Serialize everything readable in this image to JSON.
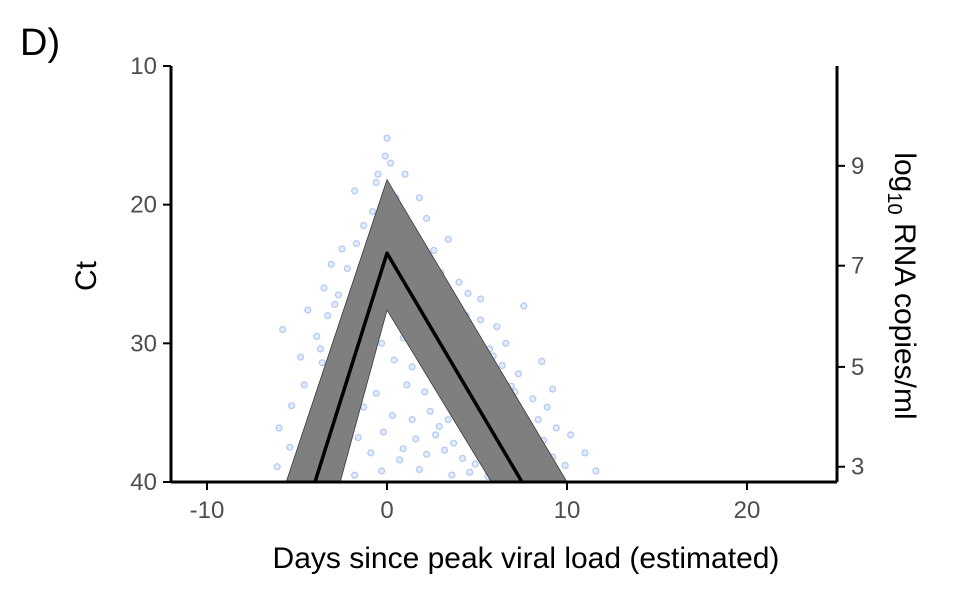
{
  "panel_label": "D)",
  "colors": {
    "points": "#4f86e8",
    "band": "#7f7f7f",
    "line": "#000000",
    "axis": "#000000"
  },
  "chart_data": {
    "type": "line",
    "title": "",
    "xlabel": "Days since peak viral load (estimated)",
    "ylabel": "Ct",
    "y2label": {
      "base": "log",
      "subscript": "10",
      "rest": " RNA copies/ml"
    },
    "xlim": [
      -12,
      25
    ],
    "ylim": [
      10,
      40
    ],
    "y_reversed": true,
    "x_ticks": [
      -10,
      0,
      10,
      20
    ],
    "x_tick_labels": [
      "-10",
      "0",
      "10",
      "20"
    ],
    "y_ticks": [
      10,
      20,
      30,
      40
    ],
    "y_tick_labels": [
      "10",
      "20",
      "30",
      "40"
    ],
    "y2_ticks_ct": [
      17.2,
      24.4,
      31.7,
      38.9
    ],
    "y2_tick_labels": [
      "9",
      "7",
      "5",
      "3"
    ],
    "grid": false,
    "series": [
      {
        "x": [
          -4,
          0,
          7.5
        ],
        "y": [
          40,
          23.5,
          40
        ]
      }
    ],
    "band": {
      "upper": {
        "x": [
          -5.6,
          0,
          10
        ],
        "y": [
          40,
          18.2,
          40
        ]
      },
      "lower": {
        "x": [
          -2.6,
          0,
          5.8
        ],
        "y": [
          40,
          27.6,
          40
        ]
      }
    },
    "scatter_note": "individual Ct observations (semi-transparent)",
    "scatter": [
      [
        0,
        15.2
      ],
      [
        -0.1,
        16.5
      ],
      [
        0.2,
        17
      ],
      [
        -0.5,
        17.8
      ],
      [
        1,
        17.8
      ],
      [
        -1.8,
        19
      ],
      [
        0.5,
        19.5
      ],
      [
        -0.8,
        20.5
      ],
      [
        1.8,
        19.5
      ],
      [
        -1.3,
        21.5
      ],
      [
        -0.3,
        21
      ],
      [
        0.9,
        21.2
      ],
      [
        2.2,
        21
      ],
      [
        -2.5,
        23.2
      ],
      [
        -1.7,
        22.8
      ],
      [
        -0.9,
        23.5
      ],
      [
        0.4,
        22.8
      ],
      [
        1.5,
        23
      ],
      [
        2.6,
        23.3
      ],
      [
        3.4,
        22.5
      ],
      [
        -3.1,
        24.3
      ],
      [
        -2.2,
        24.6
      ],
      [
        -1,
        25
      ],
      [
        0.2,
        25.3
      ],
      [
        1.2,
        24.7
      ],
      [
        2,
        25.4
      ],
      [
        3,
        24.9
      ],
      [
        4,
        25.6
      ],
      [
        -3.5,
        26
      ],
      [
        -2.7,
        26.5
      ],
      [
        -1.5,
        26.3
      ],
      [
        -0.6,
        26.9
      ],
      [
        0.8,
        26.1
      ],
      [
        1.8,
        26.7
      ],
      [
        2.7,
        26.4
      ],
      [
        3.6,
        26.9
      ],
      [
        4.5,
        26.4
      ],
      [
        5.2,
        26.8
      ],
      [
        -4.4,
        27.6
      ],
      [
        -3.3,
        28
      ],
      [
        -2,
        27.8
      ],
      [
        -0.8,
        28.2
      ],
      [
        0.6,
        28.5
      ],
      [
        1.6,
        28.1
      ],
      [
        2.5,
        28.7
      ],
      [
        3.3,
        28.1
      ],
      [
        4.2,
        28.6
      ],
      [
        5.2,
        28.3
      ],
      [
        6.1,
        28.8
      ],
      [
        7.6,
        27.3
      ],
      [
        -5.8,
        29
      ],
      [
        -3.9,
        29.5
      ],
      [
        -2.6,
        29.8
      ],
      [
        -1.4,
        29.4
      ],
      [
        -0.3,
        30
      ],
      [
        0.9,
        29.6
      ],
      [
        1.9,
        30.1
      ],
      [
        2.8,
        29.7
      ],
      [
        3.8,
        30.3
      ],
      [
        4.8,
        29.9
      ],
      [
        5.7,
        30.4
      ],
      [
        6.6,
        30
      ],
      [
        -4.8,
        31
      ],
      [
        -3.6,
        31.4
      ],
      [
        -2.3,
        31.1
      ],
      [
        -1,
        31.6
      ],
      [
        0.4,
        31.2
      ],
      [
        1.4,
        31.7
      ],
      [
        2.4,
        31.3
      ],
      [
        3.4,
        31.9
      ],
      [
        4.4,
        31.5
      ],
      [
        5.4,
        32
      ],
      [
        6.4,
        31.6
      ],
      [
        7.3,
        32.2
      ],
      [
        8.6,
        31.3
      ],
      [
        -4.6,
        33
      ],
      [
        -3.2,
        33.3
      ],
      [
        -1.8,
        32.8
      ],
      [
        -0.6,
        33.6
      ],
      [
        1.1,
        33
      ],
      [
        2.1,
        33.5
      ],
      [
        3.1,
        33.1
      ],
      [
        4.1,
        33.8
      ],
      [
        5.1,
        33.3
      ],
      [
        6.1,
        33.9
      ],
      [
        7.1,
        33.5
      ],
      [
        8.1,
        34
      ],
      [
        9.2,
        33.3
      ],
      [
        -5.3,
        34.5
      ],
      [
        -4,
        34.8
      ],
      [
        -2.7,
        35.1
      ],
      [
        -1.3,
        34.6
      ],
      [
        0.3,
        35.2
      ],
      [
        1.4,
        35.5
      ],
      [
        2.4,
        34.9
      ],
      [
        3.4,
        35.5
      ],
      [
        4.4,
        35.1
      ],
      [
        5.4,
        35.8
      ],
      [
        6.4,
        35.3
      ],
      [
        7.4,
        36
      ],
      [
        8.4,
        35.5
      ],
      [
        9.4,
        36.1
      ],
      [
        -6,
        36.1
      ],
      [
        -4.4,
        36.5
      ],
      [
        -3,
        36.3
      ],
      [
        -1.6,
        36.8
      ],
      [
        -0.2,
        36.4
      ],
      [
        1.6,
        36.9
      ],
      [
        2.7,
        36.6
      ],
      [
        3.7,
        37.2
      ],
      [
        4.7,
        36.7
      ],
      [
        5.7,
        37.3
      ],
      [
        6.7,
        36.9
      ],
      [
        7.7,
        37.4
      ],
      [
        8.7,
        37
      ],
      [
        10.2,
        36.6
      ],
      [
        -5.4,
        37.5
      ],
      [
        -3.8,
        37.8
      ],
      [
        -2.3,
        37.6
      ],
      [
        -0.9,
        37.9
      ],
      [
        0.9,
        37.6
      ],
      [
        2.2,
        38
      ],
      [
        3.2,
        37.7
      ],
      [
        4.2,
        38.3
      ],
      [
        5.2,
        37.9
      ],
      [
        6.2,
        38.4
      ],
      [
        7.2,
        38.1
      ],
      [
        8.2,
        38.5
      ],
      [
        9.2,
        38.2
      ],
      [
        11,
        37.9
      ],
      [
        -6.1,
        38.9
      ],
      [
        -4.9,
        39.3
      ],
      [
        -3.4,
        39.1
      ],
      [
        -1.8,
        39.5
      ],
      [
        -0.3,
        39.2
      ],
      [
        1.8,
        39.1
      ],
      [
        3.6,
        39.5
      ],
      [
        4.6,
        39.3
      ],
      [
        5.6,
        39.6
      ],
      [
        6.6,
        39.2
      ],
      [
        7.6,
        39.6
      ],
      [
        8.6,
        39.3
      ],
      [
        9.6,
        39.7
      ],
      [
        11.6,
        39.2
      ],
      [
        -0.6,
        18.4
      ],
      [
        0.5,
        20.4
      ],
      [
        1.3,
        22
      ],
      [
        -1.1,
        23.8
      ],
      [
        -2.9,
        27.2
      ],
      [
        2.3,
        27.4
      ],
      [
        4.4,
        28
      ],
      [
        5.9,
        30.9
      ],
      [
        -3.7,
        30.4
      ],
      [
        3.7,
        32.4
      ],
      [
        6.9,
        33.1
      ],
      [
        -2,
        34.1
      ],
      [
        8.9,
        34.6
      ],
      [
        2.9,
        36
      ],
      [
        6.1,
        36.4
      ],
      [
        0.7,
        38.4
      ],
      [
        -2.9,
        38.4
      ],
      [
        4.9,
        38.7
      ],
      [
        9.9,
        38.8
      ],
      [
        7.1,
        35.3
      ]
    ]
  }
}
